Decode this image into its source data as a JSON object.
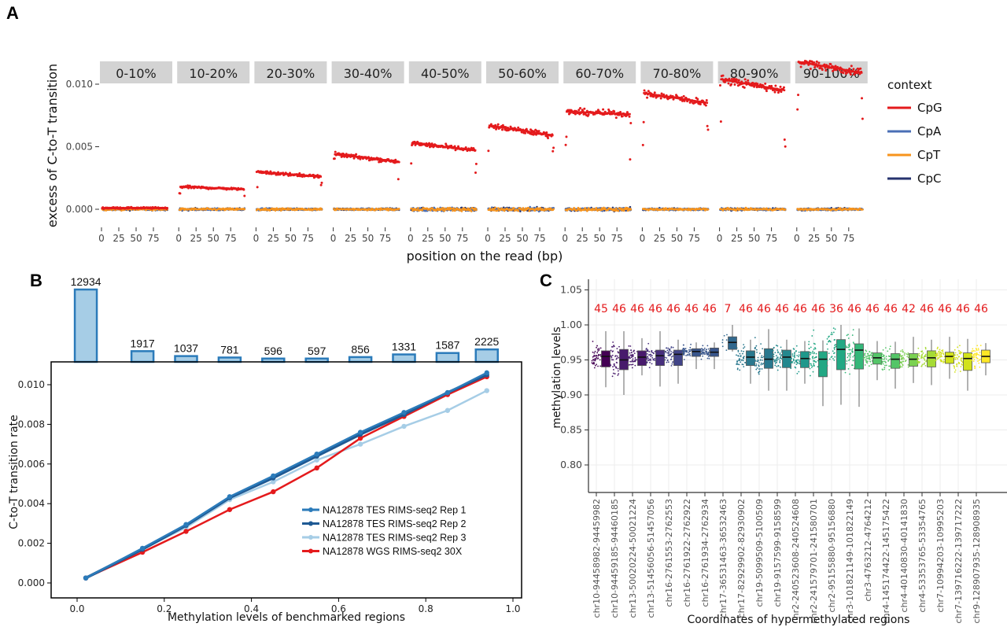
{
  "panels": {
    "a": "A",
    "b": "B",
    "c": "C"
  },
  "chart_data": [
    {
      "panel": "A",
      "type": "scatter",
      "xlabel": "position on the read (bp)",
      "ylabel": "excess of C-to-T transition",
      "ylim": [
        -0.0005,
        0.0133
      ],
      "yticks": [
        0.0,
        0.005,
        0.01
      ],
      "ytick_labels": [
        "0.000",
        "0.005",
        "0.010"
      ],
      "xticks": [
        0,
        25,
        50,
        75
      ],
      "xticks_labels": [
        "0",
        "25",
        "50",
        "75"
      ],
      "xlim": [
        0,
        95
      ],
      "grid": false,
      "legend": {
        "title": "context",
        "placement": "right",
        "entries": [
          "CpG",
          "CpA",
          "CpT",
          "CpC"
        ]
      },
      "colors": {
        "CpG": "#e41a1c",
        "CpA": "#4a6fb5",
        "CpT": "#f7941d",
        "CpC": "#26336e"
      },
      "facets": [
        {
          "label": "0-10%",
          "CpG_fit": [
            0.0001,
            0.0001
          ]
        },
        {
          "label": "10-20%",
          "CpG_fit": [
            0.0018,
            0.0016
          ]
        },
        {
          "label": "20-30%",
          "CpG_fit": [
            0.003,
            0.0026
          ]
        },
        {
          "label": "30-40%",
          "CpG_fit": [
            0.0044,
            0.0038
          ]
        },
        {
          "label": "40-50%",
          "CpG_fit": [
            0.0053,
            0.0047
          ]
        },
        {
          "label": "50-60%",
          "CpG_fit": [
            0.0067,
            0.0059
          ]
        },
        {
          "label": "60-70%",
          "CpG_fit": [
            0.0078,
            0.0076
          ]
        },
        {
          "label": "70-80%",
          "CpG_fit": [
            0.0093,
            0.0085
          ]
        },
        {
          "label": "80-90%",
          "CpG_fit": [
            0.0104,
            0.0095
          ]
        },
        {
          "label": "90-100%",
          "CpG_fit": [
            0.0118,
            0.0109
          ]
        }
      ],
      "other_contexts_level": 0.0
    },
    {
      "panel": "B-top",
      "type": "bar",
      "categories": [
        "0-10%",
        "10-20%",
        "20-30%",
        "30-40%",
        "40-50%",
        "50-60%",
        "60-70%",
        "70-80%",
        "80-90%",
        "90-100%"
      ],
      "values": [
        12934,
        1917,
        1037,
        781,
        596,
        597,
        856,
        1331,
        1587,
        2225
      ],
      "value_labels": [
        "12934",
        "1917",
        "1037",
        "781",
        "596",
        "597",
        "856",
        "1331",
        "1587",
        "2225"
      ],
      "bar_color": "#a6cde6",
      "edge_color": "#2b7bba"
    },
    {
      "panel": "B",
      "type": "line",
      "xlabel": "Methylation levels of benchmarked regions",
      "ylabel": "C-to-T transition rate",
      "xlim": [
        -0.08,
        1.02
      ],
      "ylim": [
        -0.0002,
        0.0111
      ],
      "xticks": [
        0.0,
        0.2,
        0.4,
        0.6,
        0.8,
        1.0
      ],
      "xtick_labels": [
        "0.0",
        "0.2",
        "0.4",
        "0.6",
        "0.8",
        "1.0"
      ],
      "yticks": [
        0.0,
        0.002,
        0.004,
        0.006,
        0.008,
        0.01
      ],
      "ytick_labels": [
        "0.000",
        "0.002",
        "0.004",
        "0.006",
        "0.008",
        "0.010"
      ],
      "legend_placement": "bottom-right",
      "x": [
        0.02,
        0.15,
        0.25,
        0.35,
        0.45,
        0.55,
        0.65,
        0.75,
        0.85,
        0.94
      ],
      "series": [
        {
          "name": "NA12878 TES RIMS-seq2 Rep 1",
          "color": "#2b7bba",
          "values": [
            0.00025,
            0.00175,
            0.00295,
            0.00435,
            0.0054,
            0.0065,
            0.0076,
            0.0086,
            0.0096,
            0.0106
          ]
        },
        {
          "name": "NA12878 TES RIMS-seq2 Rep 2",
          "color": "#1f5a94",
          "values": [
            0.00025,
            0.0017,
            0.0029,
            0.0043,
            0.0053,
            0.0064,
            0.0075,
            0.0085,
            0.0096,
            0.0105
          ]
        },
        {
          "name": "NA12878 TES RIMS-seq2 Rep 3",
          "color": "#a6cde6",
          "values": [
            0.00025,
            0.0017,
            0.0028,
            0.0042,
            0.0051,
            0.0062,
            0.007,
            0.0079,
            0.0087,
            0.0097
          ]
        },
        {
          "name": "NA12878 WGS RIMS-seq2 30X",
          "color": "#e41a1c",
          "values": [
            0.00025,
            0.00155,
            0.0026,
            0.0037,
            0.0046,
            0.0058,
            0.0073,
            0.0084,
            0.0095,
            0.0104
          ]
        }
      ]
    },
    {
      "panel": "C",
      "type": "box",
      "xlabel": "Coordinates of hypermethylated regions",
      "ylabel": "methylation levels",
      "ylim": [
        0.79,
        1.06
      ],
      "yticks": [
        0.8,
        0.85,
        0.9,
        0.95,
        1.0,
        1.05
      ],
      "ytick_labels": [
        "0.80",
        "0.85",
        "0.90",
        "0.95",
        "1.00",
        "1.05"
      ],
      "grid": true,
      "count_color": "#e41a1c",
      "palette": "viridis",
      "categories": [
        "chr10-94458982-94459982",
        "chr10-94459185-94460185",
        "chr13-50020224-50021224",
        "chr13-51456056-51457056",
        "chr16-2761553-2762553",
        "chr16-2761922-2762922",
        "chr16-2761934-2762934",
        "chr17-36531463-36532463",
        "chr17-82929902-82930902",
        "chr19-5099509-5100509",
        "chr19-9157599-9158599",
        "hr2-240523608-240524608",
        "chr2-241579701-241580701",
        "chr2-95155880-95156880",
        "chr3-101821149-101822149",
        "chr3-4763212-4764212",
        "chr4-145174422-145175422",
        "chr4-40140830-40141830",
        "chr4-53353765-53354765",
        "chr7-10994203-10995203",
        "chr7-139716222-139717222",
        "chr9-128907935-128908935"
      ],
      "counts": [
        "45",
        "46",
        "46",
        "46",
        "46",
        "46",
        "46",
        "7",
        "46",
        "46",
        "46",
        "46",
        "46",
        "36",
        "46",
        "46",
        "46",
        "42",
        "46",
        "46",
        "46",
        "46"
      ],
      "boxes": [
        [
          0.911,
          0.94,
          0.955,
          0.963,
          0.991
        ],
        [
          0.9,
          0.936,
          0.95,
          0.965,
          0.991
        ],
        [
          0.928,
          0.942,
          0.954,
          0.963,
          0.981
        ],
        [
          0.912,
          0.942,
          0.956,
          0.964,
          0.991
        ],
        [
          0.916,
          0.942,
          0.958,
          0.964,
          0.979
        ],
        [
          0.937,
          0.955,
          0.962,
          0.966,
          0.975
        ],
        [
          0.937,
          0.955,
          0.961,
          0.967,
          0.975
        ],
        [
          0.962,
          0.965,
          0.975,
          0.983,
          1.0
        ],
        [
          0.916,
          0.942,
          0.954,
          0.963,
          0.979
        ],
        [
          0.906,
          0.938,
          0.951,
          0.966,
          0.994
        ],
        [
          0.906,
          0.939,
          0.954,
          0.964,
          0.979
        ],
        [
          0.916,
          0.939,
          0.952,
          0.962,
          0.977
        ],
        [
          0.884,
          0.926,
          0.951,
          0.962,
          0.978
        ],
        [
          0.886,
          0.936,
          0.965,
          0.979,
          1.0
        ],
        [
          0.883,
          0.937,
          0.964,
          0.973,
          0.995
        ],
        [
          0.921,
          0.944,
          0.953,
          0.96,
          0.977
        ],
        [
          0.909,
          0.938,
          0.951,
          0.959,
          0.976
        ],
        [
          0.917,
          0.941,
          0.951,
          0.959,
          0.983
        ],
        [
          0.914,
          0.94,
          0.953,
          0.963,
          0.979
        ],
        [
          0.923,
          0.945,
          0.955,
          0.961,
          0.983
        ],
        [
          0.906,
          0.935,
          0.952,
          0.96,
          0.98
        ],
        [
          0.928,
          0.946,
          0.955,
          0.964,
          0.974
        ]
      ]
    }
  ]
}
